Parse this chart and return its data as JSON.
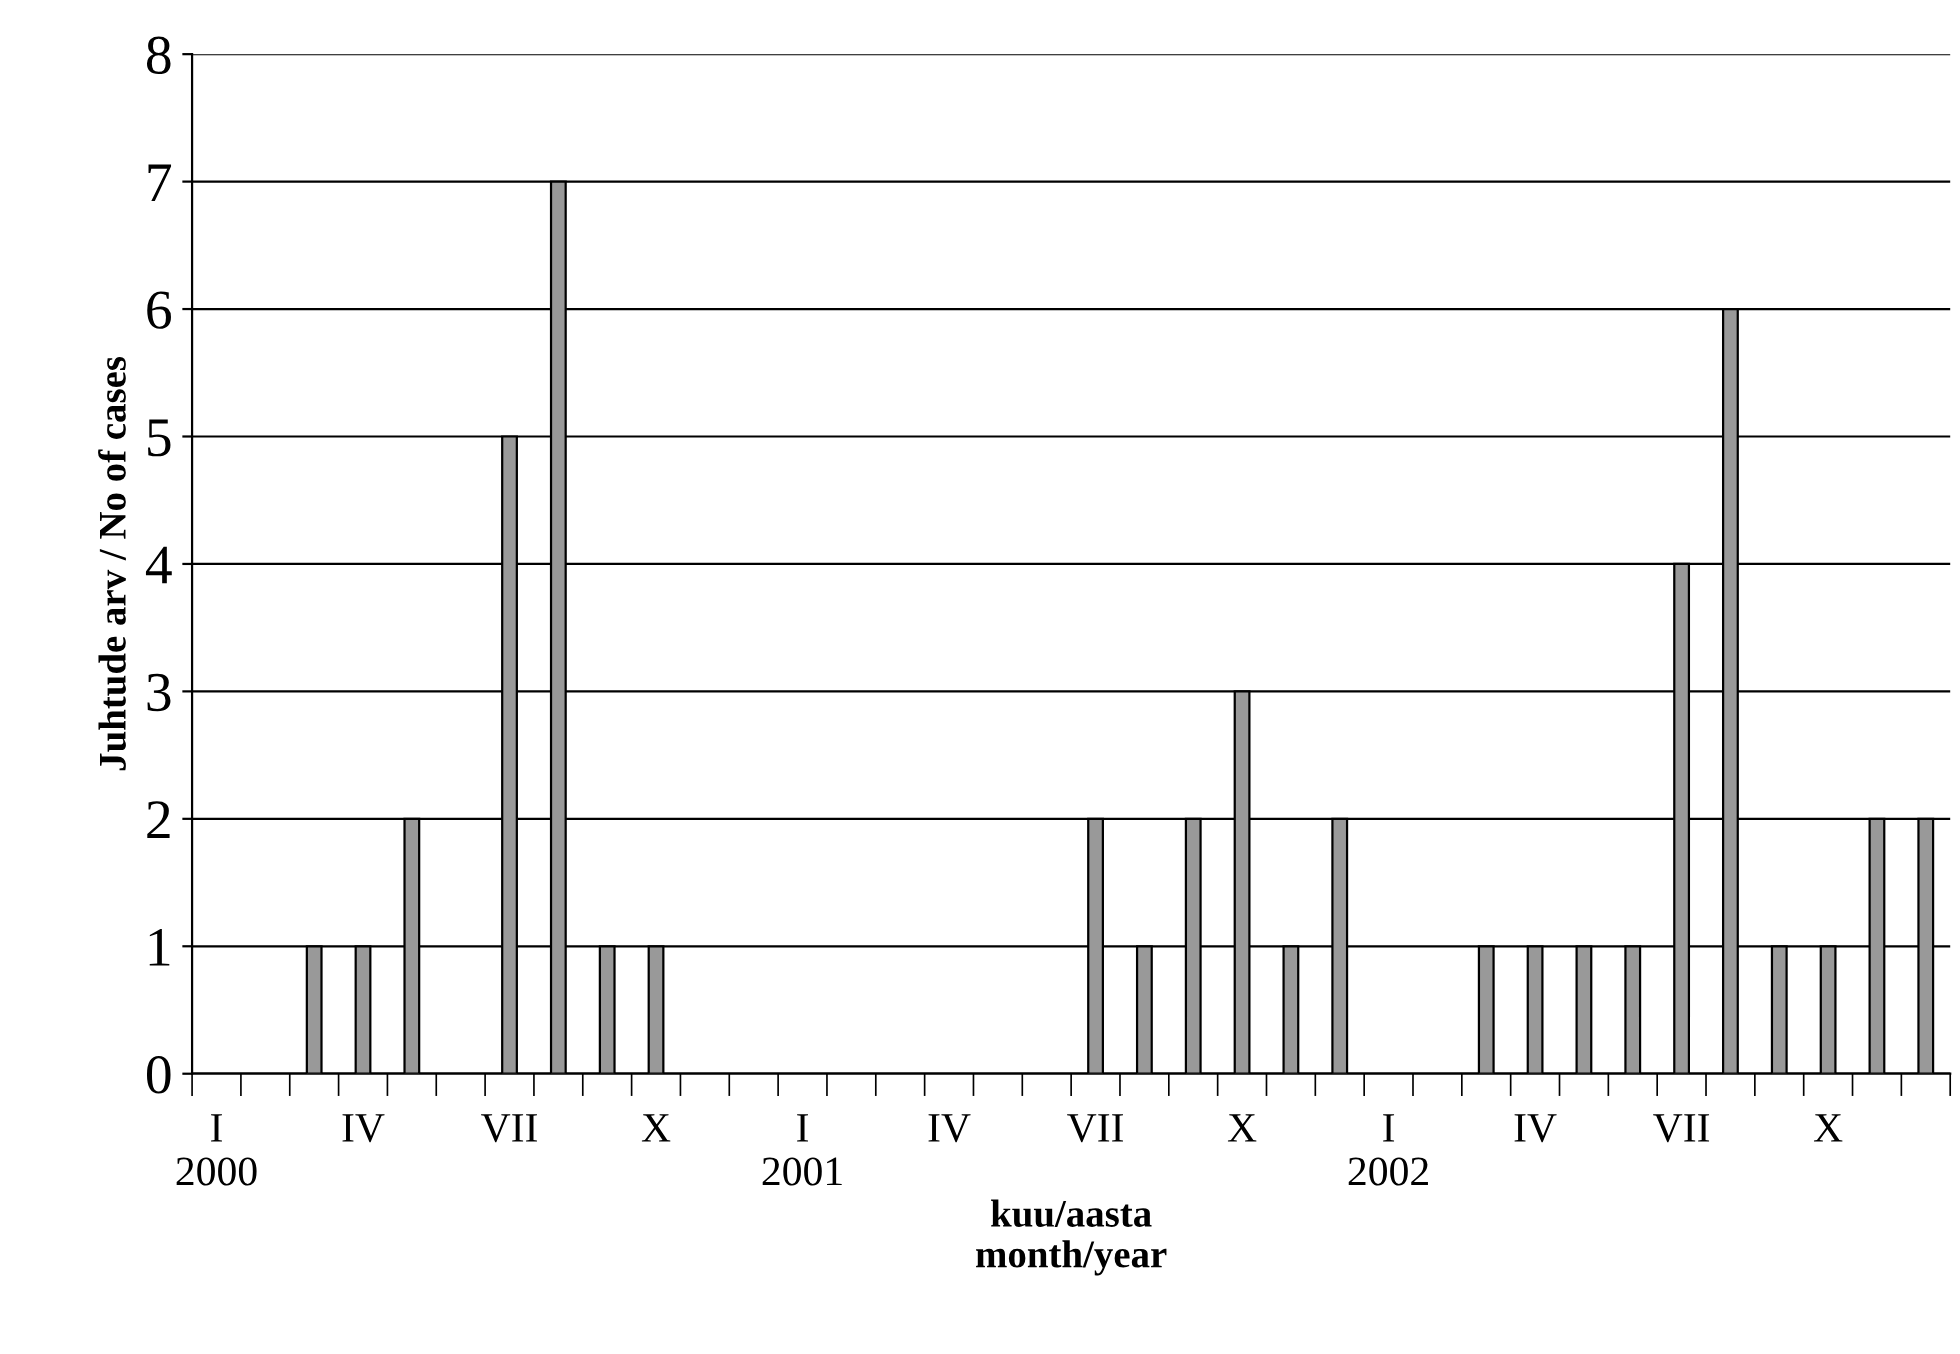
{
  "chart_data": {
    "type": "bar",
    "ylabel": "Juhtude arv / No of cases",
    "xlabel": "kuu/aasta\nmonth/year",
    "categories": [
      "I\n2000",
      null,
      null,
      "IV",
      null,
      null,
      "VII",
      null,
      null,
      "X",
      null,
      null,
      "I\n2001",
      null,
      null,
      "IV",
      null,
      null,
      "VII",
      null,
      null,
      "X",
      null,
      null,
      "I\n2002",
      null,
      null,
      "IV",
      null,
      null,
      "VII",
      null,
      null,
      "X",
      null,
      null
    ],
    "values": [
      0,
      0,
      1,
      1,
      2,
      0,
      5,
      7,
      1,
      1,
      0,
      0,
      0,
      0,
      0,
      0,
      0,
      0,
      2,
      1,
      2,
      3,
      1,
      2,
      0,
      0,
      1,
      1,
      1,
      1,
      4,
      6,
      1,
      1,
      2,
      2
    ],
    "color": "#999999",
    "ylim": [
      0,
      8
    ],
    "yticks": [
      0,
      1,
      2,
      3,
      4,
      5,
      6,
      7,
      8
    ],
    "grid": "y"
  }
}
